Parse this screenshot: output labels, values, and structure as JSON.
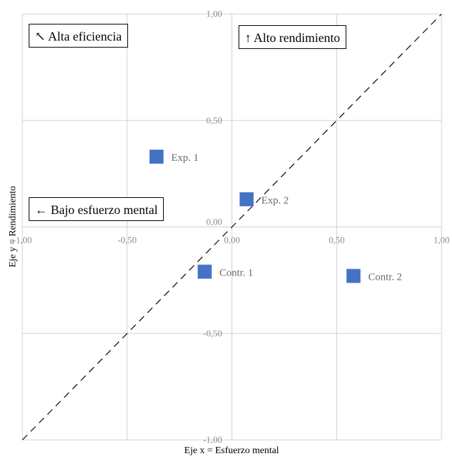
{
  "chart_data": {
    "type": "scatter",
    "xlabel": "Eje x = Esfuerzo mental",
    "ylabel": "Eje y = Rendimiento",
    "xlim": [
      -1,
      1
    ],
    "ylim": [
      -1,
      1
    ],
    "x_ticks": [
      "-1,00",
      "-0,50",
      "0,00",
      "0,50",
      "1,00"
    ],
    "y_ticks": [
      "-1,00",
      "-0,50",
      "0,00",
      "0,50",
      "1,00"
    ],
    "grid": true,
    "points": [
      {
        "label": "Exp. 1",
        "x": -0.36,
        "y": 0.33
      },
      {
        "label": "Exp. 2",
        "x": 0.07,
        "y": 0.13
      },
      {
        "label": "Contr. 1",
        "x": -0.13,
        "y": -0.21
      },
      {
        "label": "Contr. 2",
        "x": 0.58,
        "y": -0.23
      }
    ],
    "reference_line": {
      "style": "dashed",
      "from": [
        -1,
        -1
      ],
      "to": [
        1,
        1
      ]
    },
    "annotations": [
      {
        "id": "alta",
        "text": "↖ Alta eficiencia"
      },
      {
        "id": "alto",
        "text": "↑  Alto rendimiento"
      },
      {
        "id": "bajo",
        "text": "← Bajo esfuerzo mental"
      }
    ],
    "colors": {
      "marker": "#4472c4",
      "grid": "#d0d0d0",
      "tick_text": "#8c8c8c",
      "point_label": "#6b6b6b"
    }
  }
}
